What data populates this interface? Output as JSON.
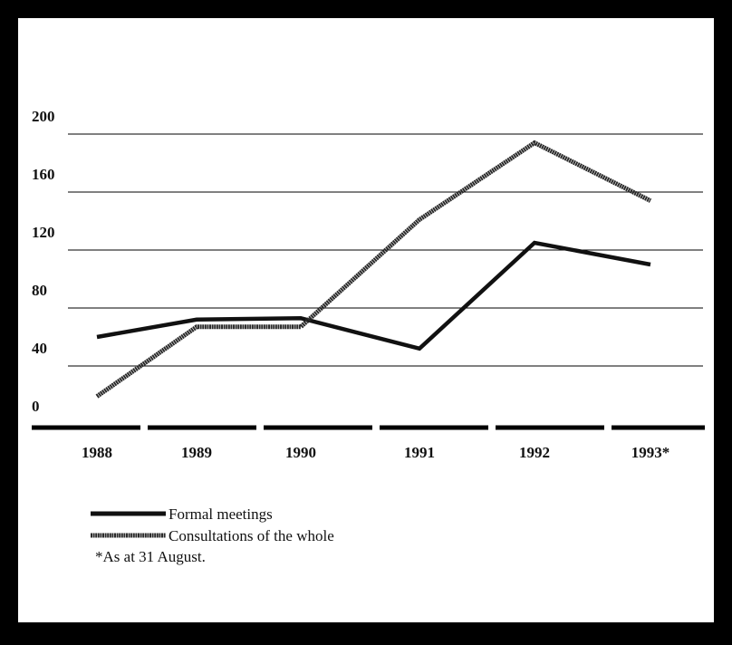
{
  "chart_data": {
    "type": "line",
    "categories": [
      "1988",
      "1989",
      "1990",
      "1991",
      "1992",
      "1993*"
    ],
    "series": [
      {
        "name": "Formal meetings",
        "color": "#111111",
        "values": [
          60,
          72,
          73,
          52,
          125,
          110
        ]
      },
      {
        "name": "Consultations of the whole",
        "color": "#2a2a2a",
        "values": [
          19,
          67,
          67,
          141,
          194,
          154
        ]
      }
    ],
    "ylim": [
      0,
      200
    ],
    "yticks": [
      0,
      40,
      80,
      120,
      160,
      200
    ],
    "grid": true,
    "note": "*As at 31 August."
  }
}
